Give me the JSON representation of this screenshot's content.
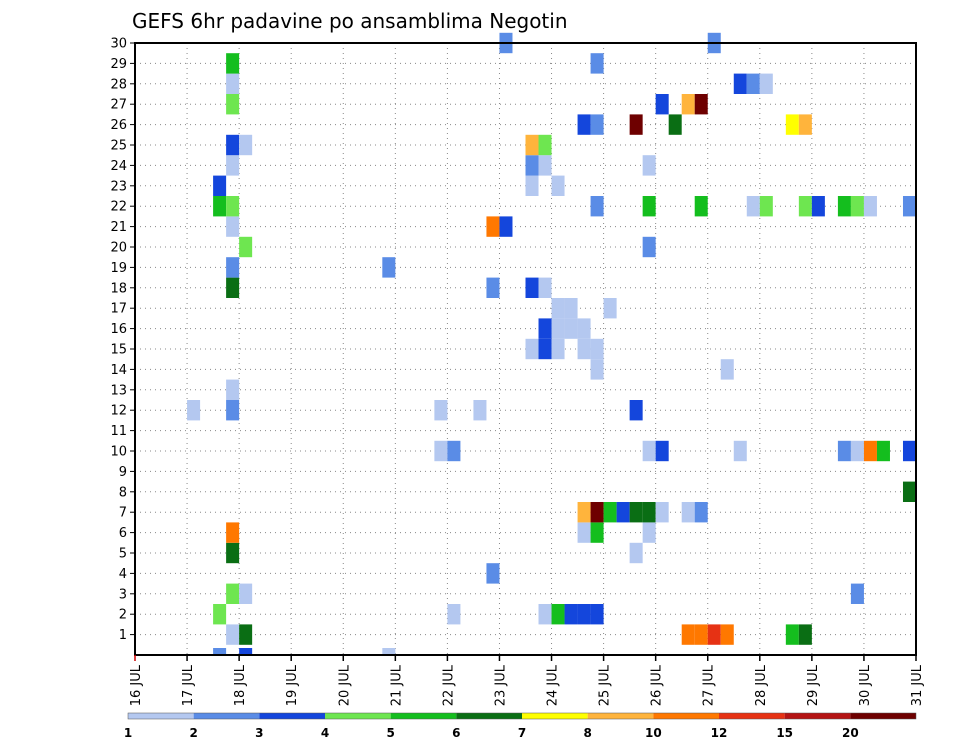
{
  "chart_data": {
    "type": "heatmap",
    "title": "GEFS 6hr padavine po ansamblima Negotin",
    "x_ticks": [
      "16 JUL",
      "17 JUL",
      "18 JUL",
      "19 JUL",
      "20 JUL",
      "21 JUL",
      "22 JUL",
      "23 JUL",
      "24 JUL",
      "25 JUL",
      "26 JUL",
      "27 JUL",
      "28 JUL",
      "29 JUL",
      "30 JUL",
      "31 JUL"
    ],
    "x_range_days": [
      16,
      31
    ],
    "y_ticks": [
      "1",
      "2",
      "3",
      "4",
      "5",
      "6",
      "7",
      "8",
      "9",
      "10",
      "11",
      "12",
      "13",
      "14",
      "15",
      "16",
      "17",
      "18",
      "19",
      "20",
      "21",
      "22",
      "23",
      "24",
      "25",
      "26",
      "27",
      "28",
      "29",
      "30"
    ],
    "y_range": [
      0,
      30
    ],
    "grid": true,
    "legend": {
      "placement": "bottom",
      "boundaries": [
        "1",
        "2",
        "3",
        "4",
        "5",
        "6",
        "7",
        "8",
        "10",
        "12",
        "15",
        "20"
      ],
      "colors": [
        "#b4c8f0",
        "#5a8ce6",
        "#1446dc",
        "#6ee650",
        "#14be1e",
        "#0a6e14",
        "#ffff00",
        "#ffb43c",
        "#ff7800",
        "#e63214",
        "#b41414",
        "#6e0000"
      ]
    },
    "cells": [
      {
        "member": 1,
        "day": 17.75,
        "bin": 1
      },
      {
        "member": 1,
        "day": 18.0,
        "bin": 6
      },
      {
        "member": 1,
        "day": 26.5,
        "bin": 9
      },
      {
        "member": 1,
        "day": 26.75,
        "bin": 9
      },
      {
        "member": 1,
        "day": 27.0,
        "bin": 10
      },
      {
        "member": 1,
        "day": 27.25,
        "bin": 9
      },
      {
        "member": 1,
        "day": 28.5,
        "bin": 5
      },
      {
        "member": 1,
        "day": 28.75,
        "bin": 6
      },
      {
        "member": 2,
        "day": 17.5,
        "bin": 4
      },
      {
        "member": 2,
        "day": 22.0,
        "bin": 1
      },
      {
        "member": 2,
        "day": 23.75,
        "bin": 1
      },
      {
        "member": 2,
        "day": 24.0,
        "bin": 5
      },
      {
        "member": 2,
        "day": 24.25,
        "bin": 3
      },
      {
        "member": 2,
        "day": 24.5,
        "bin": 3
      },
      {
        "member": 2,
        "day": 24.75,
        "bin": 3
      },
      {
        "member": 3,
        "day": 17.75,
        "bin": 4
      },
      {
        "member": 3,
        "day": 18.0,
        "bin": 1
      },
      {
        "member": 3,
        "day": 29.75,
        "bin": 2
      },
      {
        "member": 4,
        "day": 22.75,
        "bin": 2
      },
      {
        "member": 5,
        "day": 17.75,
        "bin": 6
      },
      {
        "member": 5,
        "day": 25.5,
        "bin": 1
      },
      {
        "member": 6,
        "day": 17.75,
        "bin": 9
      },
      {
        "member": 6,
        "day": 24.5,
        "bin": 1
      },
      {
        "member": 6,
        "day": 24.75,
        "bin": 5
      },
      {
        "member": 6,
        "day": 25.75,
        "bin": 1
      },
      {
        "member": 7,
        "day": 24.5,
        "bin": 8
      },
      {
        "member": 7,
        "day": 24.75,
        "bin": 12
      },
      {
        "member": 7,
        "day": 25.0,
        "bin": 5
      },
      {
        "member": 7,
        "day": 25.25,
        "bin": 3
      },
      {
        "member": 7,
        "day": 25.5,
        "bin": 6
      },
      {
        "member": 7,
        "day": 25.75,
        "bin": 6
      },
      {
        "member": 7,
        "day": 26.0,
        "bin": 1
      },
      {
        "member": 7,
        "day": 26.5,
        "bin": 1
      },
      {
        "member": 7,
        "day": 26.75,
        "bin": 2
      },
      {
        "member": 8,
        "day": 30.75,
        "bin": 6
      },
      {
        "member": 10,
        "day": 21.75,
        "bin": 1
      },
      {
        "member": 10,
        "day": 22.0,
        "bin": 2
      },
      {
        "member": 10,
        "day": 25.75,
        "bin": 1
      },
      {
        "member": 10,
        "day": 26.0,
        "bin": 3
      },
      {
        "member": 10,
        "day": 27.5,
        "bin": 1
      },
      {
        "member": 10,
        "day": 29.5,
        "bin": 2
      },
      {
        "member": 10,
        "day": 29.75,
        "bin": 1
      },
      {
        "member": 10,
        "day": 30.0,
        "bin": 9
      },
      {
        "member": 10,
        "day": 30.25,
        "bin": 5
      },
      {
        "member": 10,
        "day": 30.75,
        "bin": 3
      },
      {
        "member": 12,
        "day": 17.0,
        "bin": 1
      },
      {
        "member": 12,
        "day": 17.75,
        "bin": 2
      },
      {
        "member": 12,
        "day": 21.75,
        "bin": 1
      },
      {
        "member": 12,
        "day": 22.5,
        "bin": 1
      },
      {
        "member": 12,
        "day": 25.5,
        "bin": 3
      },
      {
        "member": 13,
        "day": 17.75,
        "bin": 1
      },
      {
        "member": 14,
        "day": 27.25,
        "bin": 1
      },
      {
        "member": 15,
        "day": 23.5,
        "bin": 1
      },
      {
        "member": 15,
        "day": 23.75,
        "bin": 3
      },
      {
        "member": 15,
        "day": 24.0,
        "bin": 1
      },
      {
        "member": 15,
        "day": 24.5,
        "bin": 1
      },
      {
        "member": 15,
        "day": 24.75,
        "bin": 1
      },
      {
        "member": 14,
        "day": 24.75,
        "bin": 1
      },
      {
        "member": 16,
        "day": 24.0,
        "bin": 1
      },
      {
        "member": 16,
        "day": 24.25,
        "bin": 1
      },
      {
        "member": 16,
        "day": 24.5,
        "bin": 1
      },
      {
        "member": 16,
        "day": 23.75,
        "bin": 3
      },
      {
        "member": 17,
        "day": 24.0,
        "bin": 1
      },
      {
        "member": 17,
        "day": 24.25,
        "bin": 1
      },
      {
        "member": 17,
        "day": 25.0,
        "bin": 1
      },
      {
        "member": 18,
        "day": 17.75,
        "bin": 6
      },
      {
        "member": 18,
        "day": 22.75,
        "bin": 2
      },
      {
        "member": 18,
        "day": 23.5,
        "bin": 3
      },
      {
        "member": 18,
        "day": 23.75,
        "bin": 1
      },
      {
        "member": 19,
        "day": 17.75,
        "bin": 2
      },
      {
        "member": 19,
        "day": 20.75,
        "bin": 2
      },
      {
        "member": 20,
        "day": 18.0,
        "bin": 4
      },
      {
        "member": 20,
        "day": 25.75,
        "bin": 2
      },
      {
        "member": 21,
        "day": 17.75,
        "bin": 1
      },
      {
        "member": 21,
        "day": 22.75,
        "bin": 9
      },
      {
        "member": 21,
        "day": 23.0,
        "bin": 3
      },
      {
        "member": 22,
        "day": 17.5,
        "bin": 5
      },
      {
        "member": 22,
        "day": 17.75,
        "bin": 4
      },
      {
        "member": 22,
        "day": 24.75,
        "bin": 2
      },
      {
        "member": 22,
        "day": 25.75,
        "bin": 5
      },
      {
        "member": 22,
        "day": 26.75,
        "bin": 5
      },
      {
        "member": 22,
        "day": 27.75,
        "bin": 1
      },
      {
        "member": 22,
        "day": 28.0,
        "bin": 4
      },
      {
        "member": 22,
        "day": 28.75,
        "bin": 4
      },
      {
        "member": 22,
        "day": 29.0,
        "bin": 3
      },
      {
        "member": 22,
        "day": 29.5,
        "bin": 5
      },
      {
        "member": 22,
        "day": 29.75,
        "bin": 4
      },
      {
        "member": 22,
        "day": 30.0,
        "bin": 1
      },
      {
        "member": 22,
        "day": 30.75,
        "bin": 2
      },
      {
        "member": 23,
        "day": 17.5,
        "bin": 3
      },
      {
        "member": 23,
        "day": 23.5,
        "bin": 1
      },
      {
        "member": 23,
        "day": 24.0,
        "bin": 1
      },
      {
        "member": 24,
        "day": 17.75,
        "bin": 1
      },
      {
        "member": 24,
        "day": 23.5,
        "bin": 2
      },
      {
        "member": 24,
        "day": 23.75,
        "bin": 1
      },
      {
        "member": 24,
        "day": 25.75,
        "bin": 1
      },
      {
        "member": 25,
        "day": 17.75,
        "bin": 3
      },
      {
        "member": 25,
        "day": 18.0,
        "bin": 1
      },
      {
        "member": 25,
        "day": 23.5,
        "bin": 8
      },
      {
        "member": 25,
        "day": 23.75,
        "bin": 4
      },
      {
        "member": 26,
        "day": 24.5,
        "bin": 3
      },
      {
        "member": 26,
        "day": 24.75,
        "bin": 2
      },
      {
        "member": 26,
        "day": 25.5,
        "bin": 12
      },
      {
        "member": 26,
        "day": 26.25,
        "bin": 6
      },
      {
        "member": 26,
        "day": 28.5,
        "bin": 7
      },
      {
        "member": 26,
        "day": 28.75,
        "bin": 8
      },
      {
        "member": 27,
        "day": 17.75,
        "bin": 4
      },
      {
        "member": 27,
        "day": 26.0,
        "bin": 3
      },
      {
        "member": 27,
        "day": 26.5,
        "bin": 8
      },
      {
        "member": 27,
        "day": 26.75,
        "bin": 12
      },
      {
        "member": 28,
        "day": 17.75,
        "bin": 1
      },
      {
        "member": 28,
        "day": 27.5,
        "bin": 3
      },
      {
        "member": 28,
        "day": 27.75,
        "bin": 2
      },
      {
        "member": 28,
        "day": 28.0,
        "bin": 1
      },
      {
        "member": 29,
        "day": 17.75,
        "bin": 5
      },
      {
        "member": 29,
        "day": 24.75,
        "bin": 2
      },
      {
        "member": 30,
        "day": 23.0,
        "bin": 2
      },
      {
        "member": 30,
        "day": 27.0,
        "bin": 2
      },
      {
        "member": 0,
        "day": 17.5,
        "bin": 2
      },
      {
        "member": 0,
        "day": 18.0,
        "bin": 3
      },
      {
        "member": 0,
        "day": 20.75,
        "bin": 1
      }
    ]
  }
}
